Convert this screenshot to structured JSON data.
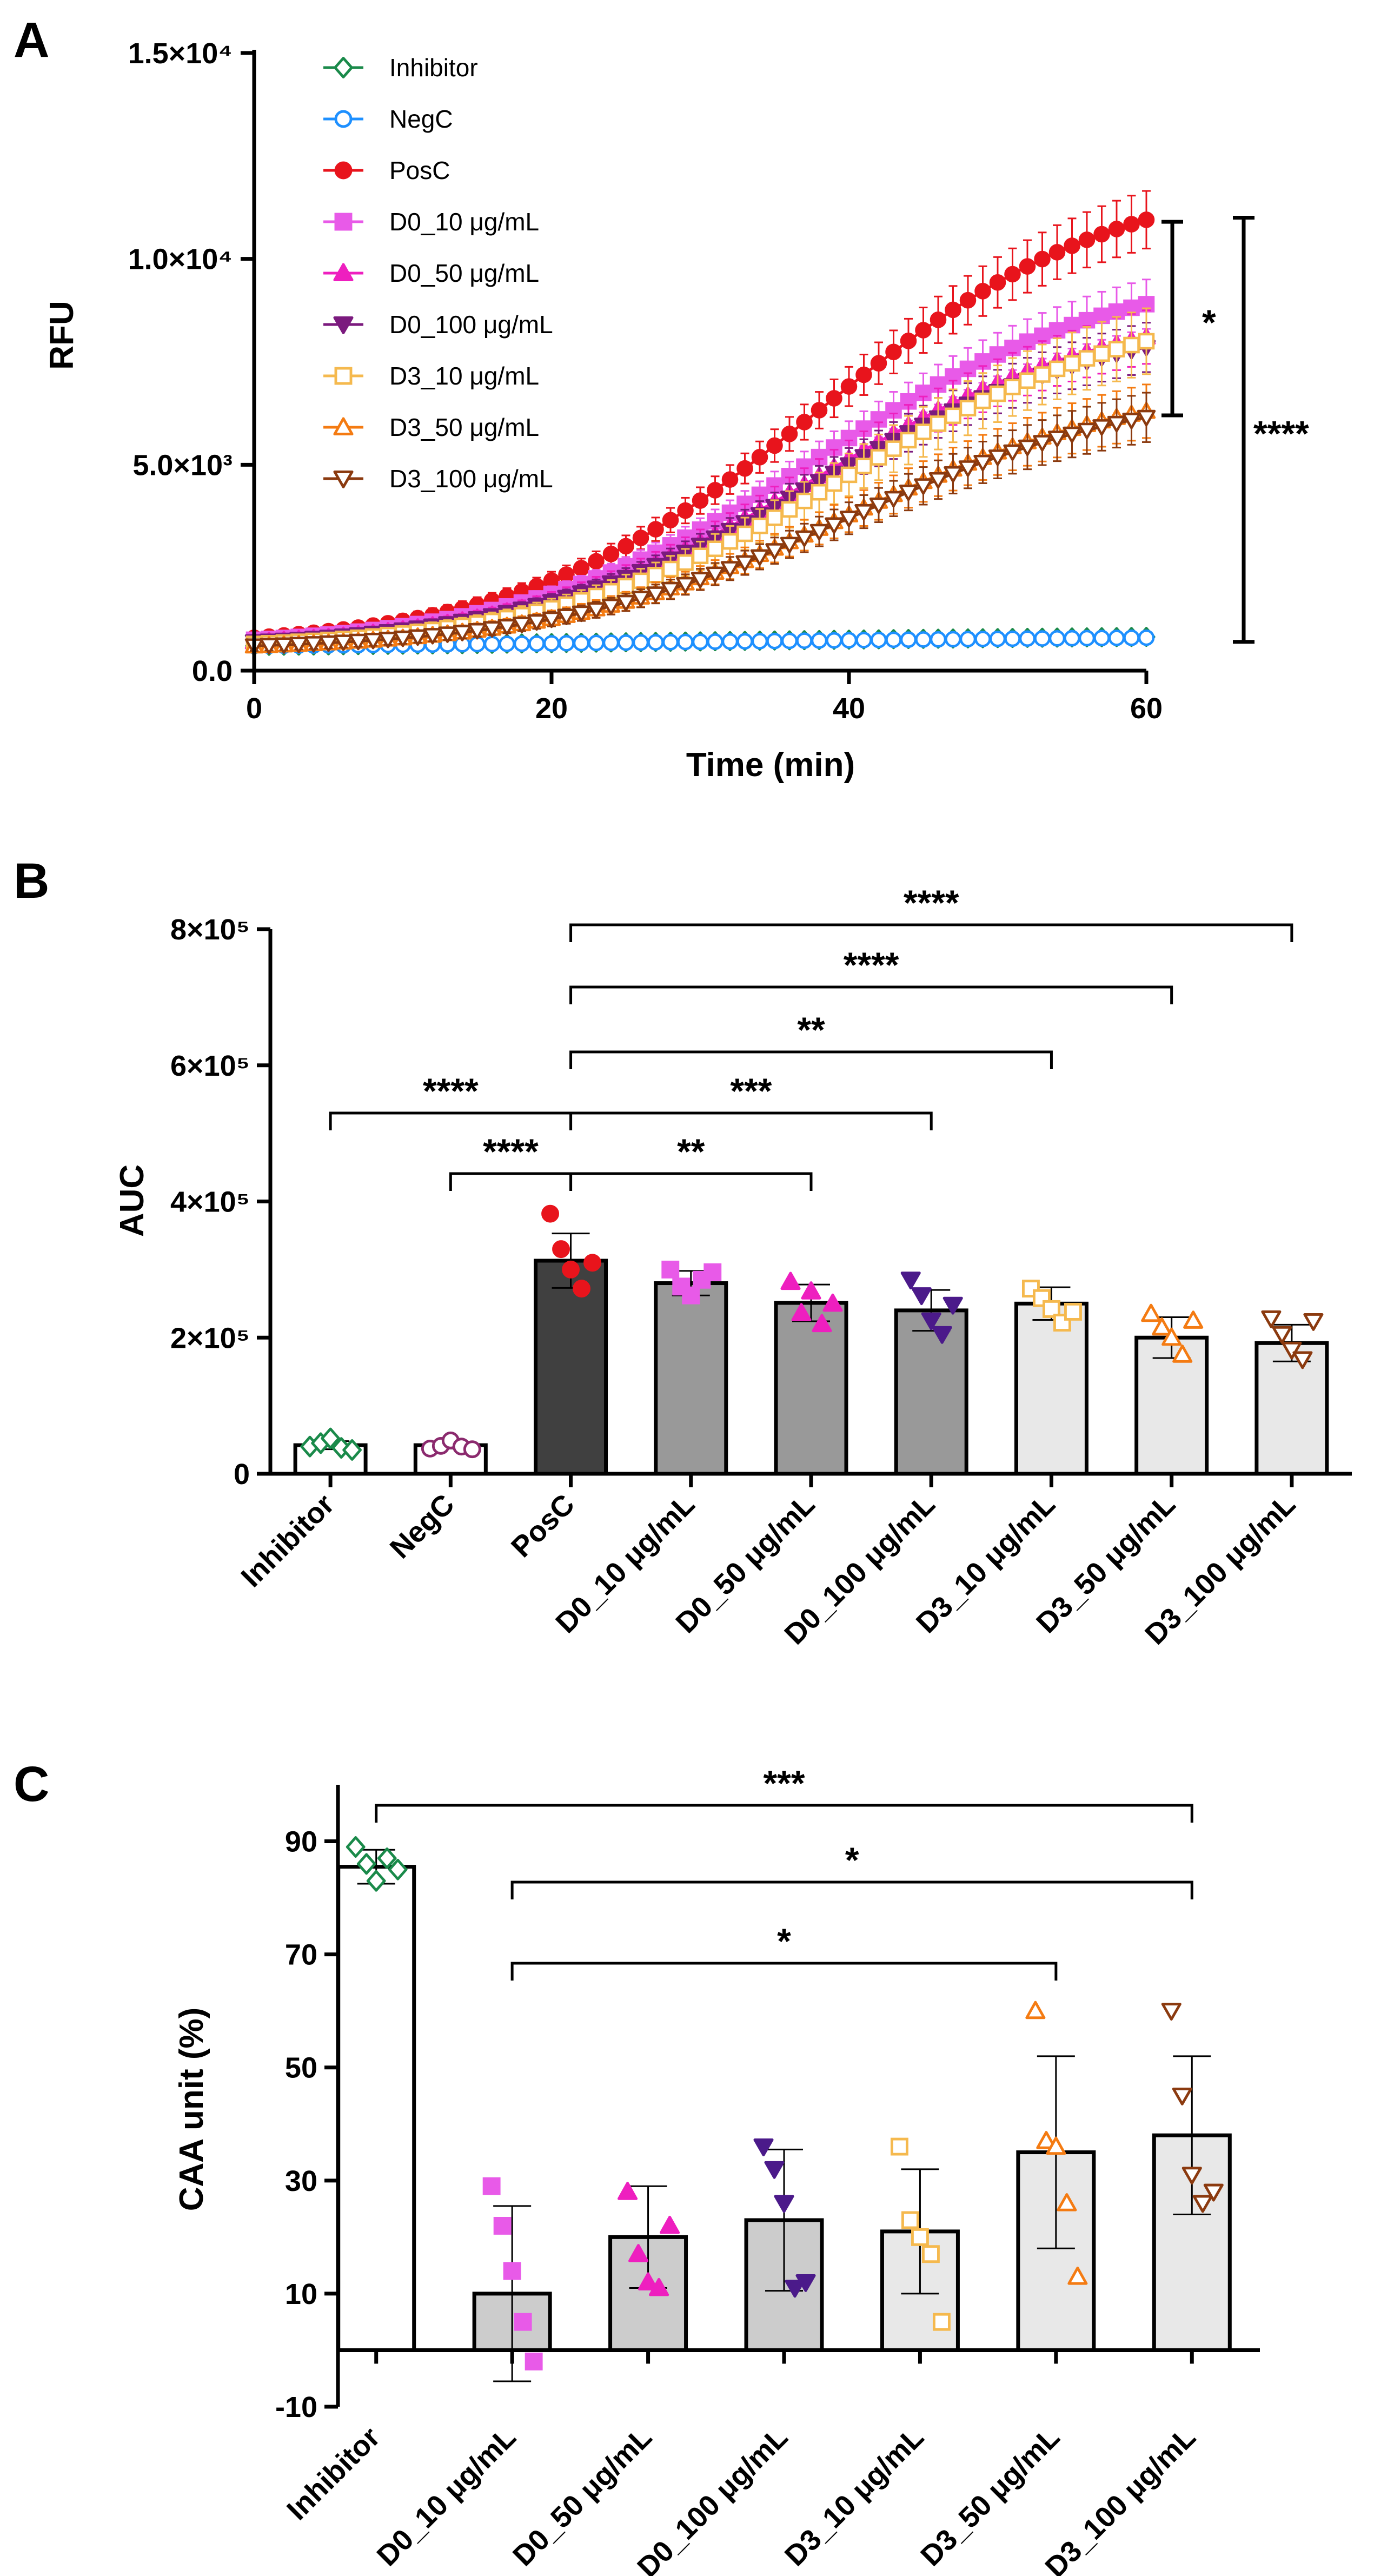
{
  "panels": [
    "A",
    "B",
    "C"
  ],
  "chart_data": [
    {
      "panel": "A",
      "type": "line",
      "xlabel": "Time (min)",
      "ylabel": "RFU",
      "xlim": [
        0,
        60
      ],
      "ylim": [
        0,
        15000
      ],
      "xticks": [
        "0",
        "20",
        "40",
        "60"
      ],
      "yticks": [
        "0.0",
        "5.0×10³",
        "1.0×10⁴",
        "1.5×10⁴"
      ],
      "ytick_values": [
        0,
        5000,
        10000,
        15000
      ],
      "legend_position": "top-left",
      "series": [
        {
          "name": "Inhibitor",
          "color": "#1a8a4a",
          "marker": "diamond-open",
          "start": 600,
          "end": 820,
          "mid": 30,
          "k": 0.05,
          "err": 40
        },
        {
          "name": "NegC",
          "color": "#1e90ff",
          "marker": "circle-open",
          "start": 600,
          "end": 800,
          "mid": 30,
          "k": 0.05,
          "err": 40
        },
        {
          "name": "PosC",
          "color": "#e8141c",
          "marker": "circle-filled",
          "start": 800,
          "end": 10950,
          "mid": 38,
          "k": 0.1,
          "err": 700
        },
        {
          "name": "D0_10 μg/mL",
          "color": "#e85ae8",
          "marker": "square-filled",
          "start": 750,
          "end": 8900,
          "mid": 38,
          "k": 0.1,
          "err": 600
        },
        {
          "name": "D0_50 μg/mL",
          "color": "#ee1fbf",
          "marker": "triangle-filled",
          "start": 700,
          "end": 8100,
          "mid": 38,
          "k": 0.1,
          "err": 650
        },
        {
          "name": "D0_100 μg/mL",
          "color": "#7b1a7e",
          "marker": "triangle-down-filled",
          "start": 700,
          "end": 7850,
          "mid": 38,
          "k": 0.1,
          "err": 600
        },
        {
          "name": "D3_10 μg/mL",
          "color": "#f5b94e",
          "marker": "square-open",
          "start": 650,
          "end": 8000,
          "mid": 40,
          "k": 0.1,
          "err": 800
        },
        {
          "name": "D3_50 μg/mL",
          "color": "#f47b12",
          "marker": "triangle-open",
          "start": 600,
          "end": 6300,
          "mid": 40,
          "k": 0.1,
          "err": 650
        },
        {
          "name": "D3_100 μg/mL",
          "color": "#8b3a0f",
          "marker": "triangle-down-open",
          "start": 600,
          "end": 6150,
          "mid": 40,
          "k": 0.1,
          "err": 600
        }
      ],
      "annotations": [
        {
          "label": "*",
          "from": 6200,
          "to": 10900
        },
        {
          "label": "****",
          "from": 700,
          "to": 11000
        }
      ]
    },
    {
      "panel": "B",
      "type": "bar",
      "ylabel": "AUC",
      "ylim": [
        0,
        800000
      ],
      "yticks": [
        "0",
        "2×10⁵",
        "4×10⁵",
        "6×10⁵",
        "8×10⁵"
      ],
      "ytick_values": [
        0,
        200000,
        400000,
        600000,
        800000
      ],
      "categories": [
        "Inhibitor",
        "NegC",
        "PosC",
        "D0_10 μg/mL",
        "D0_50 μg/mL",
        "D0_100 μg/mL",
        "D3_10 μg/mL",
        "D3_50 μg/mL",
        "D3_100 μg/mL"
      ],
      "values": [
        42000,
        42000,
        313000,
        280000,
        251000,
        240000,
        250000,
        200000,
        192000
      ],
      "errors": [
        6000,
        5000,
        40000,
        18000,
        27000,
        30000,
        24000,
        30000,
        27000
      ],
      "bar_colors": [
        "#ffffff",
        "#ffffff",
        "#404040",
        "#999999",
        "#999999",
        "#999999",
        "#e8e8e8",
        "#e8e8e8",
        "#e8e8e8"
      ],
      "point_colors": [
        "#1a8a4a",
        "#8b2a6e",
        "#e8141c",
        "#e85ae8",
        "#ee1fbf",
        "#4b1a8a",
        "#f5b94e",
        "#f47b12",
        "#8b3a0f"
      ],
      "points": [
        [
          40000,
          45000,
          52000,
          38000,
          35000
        ],
        [
          37000,
          41000,
          49000,
          40000,
          36000
        ],
        [
          382000,
          330000,
          300000,
          272000,
          310000
        ],
        [
          300000,
          275000,
          262000,
          285000,
          296000
        ],
        [
          282000,
          236000,
          268000,
          220000,
          250000
        ],
        [
          285000,
          262000,
          225000,
          205000,
          248000
        ],
        [
          272000,
          258000,
          242000,
          222000,
          238000
        ],
        [
          235000,
          215000,
          200000,
          175000,
          225000
        ],
        [
          228000,
          205000,
          182000,
          168000,
          224000
        ]
      ],
      "comparisons": [
        {
          "from": 0,
          "to": 2,
          "label": "****"
        },
        {
          "from": 1,
          "to": 2,
          "label": "****"
        },
        {
          "from": 2,
          "to": 4,
          "label": "**"
        },
        {
          "from": 2,
          "to": 5,
          "label": "***"
        },
        {
          "from": 2,
          "to": 6,
          "label": "**"
        },
        {
          "from": 2,
          "to": 7,
          "label": "****"
        },
        {
          "from": 2,
          "to": 8,
          "label": "****"
        }
      ]
    },
    {
      "panel": "C",
      "type": "bar",
      "ylabel": "CAA unit (%)",
      "ylim": [
        -10,
        100
      ],
      "yticks": [
        "-10",
        "10",
        "30",
        "50",
        "70",
        "90"
      ],
      "ytick_values": [
        -10,
        10,
        30,
        50,
        70,
        90
      ],
      "categories": [
        "Inhibitor",
        "D0_10 μg/mL",
        "D0_50 μg/mL",
        "D0_100 μg/mL",
        "D3_10 μg/mL",
        "D3_50 μg/mL",
        "D3_100 μg/mL"
      ],
      "values": [
        85.5,
        10,
        20,
        23,
        21,
        35,
        38
      ],
      "errors": [
        3,
        15.5,
        9,
        12.5,
        11,
        17,
        14
      ],
      "bar_colors": [
        "#ffffff",
        "#cccccc",
        "#cccccc",
        "#cccccc",
        "#e8e8e8",
        "#e8e8e8",
        "#e8e8e8"
      ],
      "point_colors": [
        "#1a8a4a",
        "#e85ae8",
        "#ee1fbf",
        "#4b1a8a",
        "#f5b94e",
        "#f47b12",
        "#8b3a0f"
      ],
      "points": [
        [
          89,
          86,
          83,
          87,
          85
        ],
        [
          29,
          22,
          14,
          5,
          -2
        ],
        [
          28,
          17,
          12,
          11,
          22
        ],
        [
          36,
          32,
          26,
          11,
          12
        ],
        [
          36,
          23,
          20,
          17,
          5
        ],
        [
          60,
          37,
          36,
          26,
          13
        ],
        [
          60,
          45,
          31,
          26,
          28
        ]
      ],
      "comparisons": [
        {
          "from": 0,
          "to": 6,
          "label": "***"
        },
        {
          "from": 1,
          "to": 6,
          "label": "*"
        },
        {
          "from": 1,
          "to": 5,
          "label": "*"
        }
      ]
    }
  ]
}
